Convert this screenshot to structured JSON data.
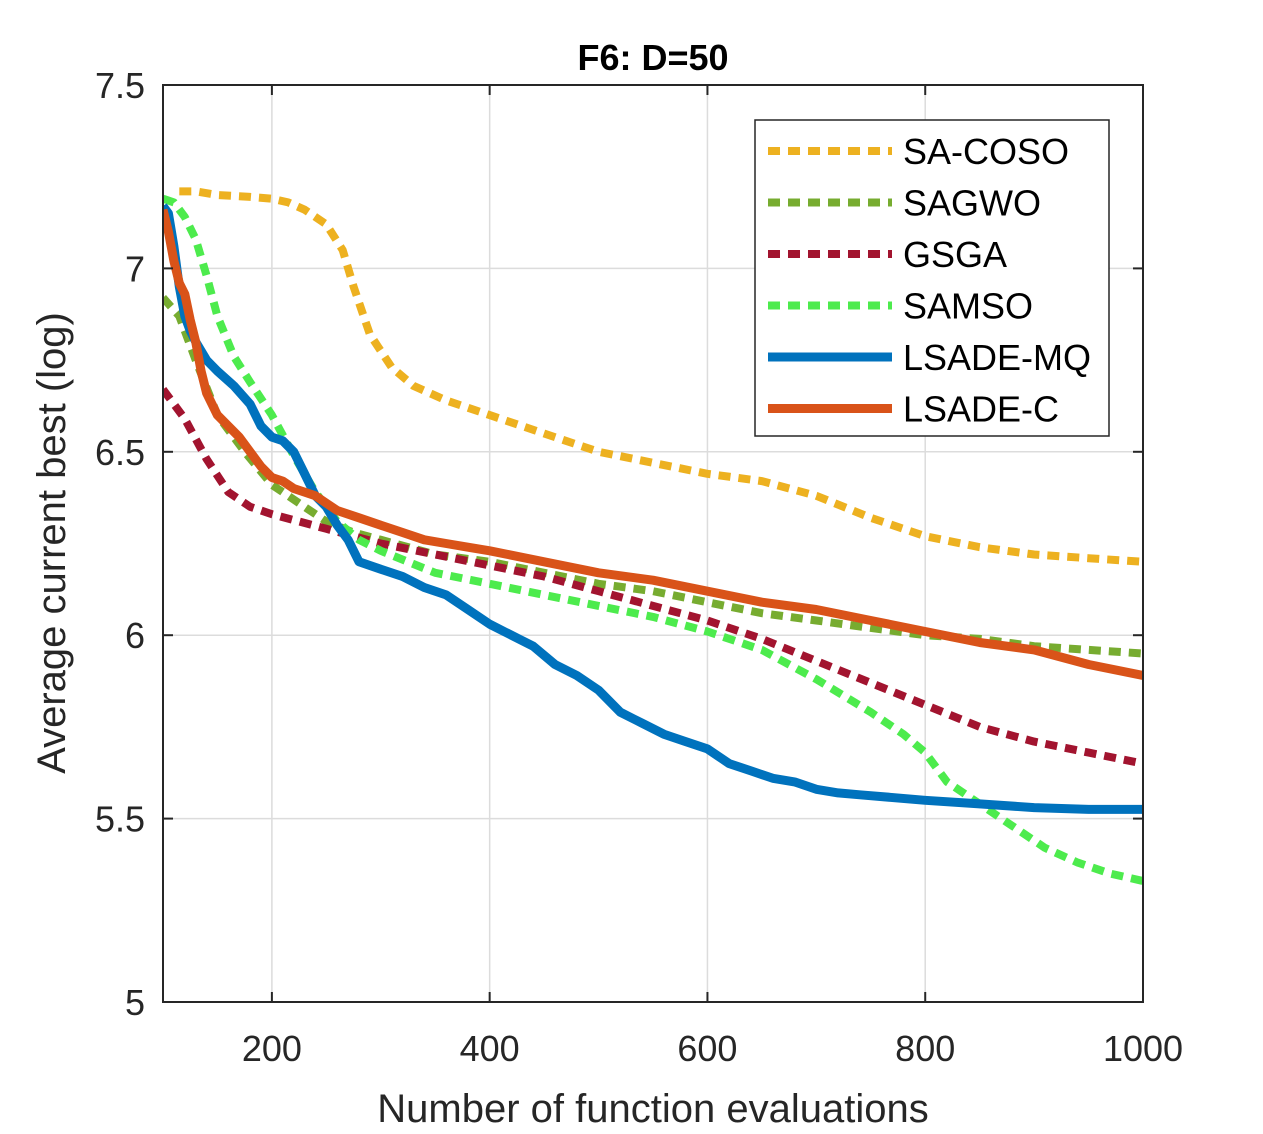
{
  "chart_data": {
    "type": "line",
    "title": "F6: D=50",
    "xlabel": "Number of function evaluations",
    "ylabel": "Average current best (log)",
    "xlim": [
      100,
      1000
    ],
    "ylim": [
      5,
      7.5
    ],
    "xticks": [
      200,
      400,
      600,
      800,
      1000
    ],
    "yticks": [
      5,
      5.5,
      6,
      6.5,
      7,
      7.5
    ],
    "xtick_labels": [
      "200",
      "400",
      "600",
      "800",
      "1000"
    ],
    "ytick_labels": [
      "5",
      "5.5",
      "6",
      "6.5",
      "7",
      "7.5"
    ],
    "grid": true,
    "legend_position": "top-right",
    "series": [
      {
        "name": "SA-COSO",
        "color": "#EDB120",
        "style": "dotted",
        "x": [
          115,
          130,
          150,
          180,
          200,
          215,
          230,
          250,
          265,
          275,
          290,
          310,
          330,
          360,
          400,
          450,
          500,
          550,
          600,
          650,
          700,
          750,
          800,
          850,
          900,
          950,
          1000
        ],
        "y": [
          7.21,
          7.21,
          7.2,
          7.195,
          7.19,
          7.18,
          7.16,
          7.12,
          7.05,
          6.95,
          6.82,
          6.73,
          6.68,
          6.64,
          6.6,
          6.55,
          6.5,
          6.47,
          6.44,
          6.42,
          6.38,
          6.32,
          6.27,
          6.24,
          6.22,
          6.21,
          6.2
        ]
      },
      {
        "name": "SAGWO",
        "color": "#77AC30",
        "style": "dotted",
        "x": [
          100,
          115,
          130,
          150,
          175,
          200,
          225,
          250,
          275,
          300,
          350,
          400,
          450,
          500,
          550,
          600,
          650,
          700,
          750,
          800,
          850,
          900,
          950,
          1000
        ],
        "y": [
          6.92,
          6.87,
          6.75,
          6.6,
          6.5,
          6.41,
          6.36,
          6.31,
          6.28,
          6.26,
          6.22,
          6.2,
          6.17,
          6.14,
          6.12,
          6.09,
          6.06,
          6.04,
          6.02,
          6.0,
          5.99,
          5.97,
          5.96,
          5.95
        ]
      },
      {
        "name": "GSGA",
        "color": "#A2142F",
        "style": "dotted",
        "x": [
          100,
          120,
          140,
          160,
          180,
          200,
          250,
          300,
          350,
          400,
          450,
          500,
          550,
          600,
          650,
          700,
          750,
          800,
          850,
          900,
          950,
          1000
        ],
        "y": [
          6.67,
          6.59,
          6.48,
          6.39,
          6.35,
          6.33,
          6.29,
          6.25,
          6.22,
          6.19,
          6.16,
          6.12,
          6.08,
          6.04,
          5.99,
          5.93,
          5.87,
          5.81,
          5.75,
          5.71,
          5.68,
          5.65
        ]
      },
      {
        "name": "SAMSO",
        "color": "#4DEB4D",
        "style": "dotted",
        "x": [
          100,
          110,
          120,
          130,
          140,
          150,
          165,
          180,
          200,
          220,
          240,
          260,
          280,
          300,
          350,
          400,
          450,
          500,
          550,
          600,
          650,
          700,
          750,
          780,
          800,
          820,
          850,
          880,
          910,
          940,
          970,
          1000
        ],
        "y": [
          7.19,
          7.18,
          7.14,
          7.08,
          6.98,
          6.87,
          6.76,
          6.69,
          6.6,
          6.49,
          6.39,
          6.31,
          6.26,
          6.23,
          6.17,
          6.14,
          6.11,
          6.08,
          6.05,
          6.01,
          5.96,
          5.88,
          5.79,
          5.73,
          5.68,
          5.6,
          5.54,
          5.48,
          5.42,
          5.38,
          5.35,
          5.33
        ]
      },
      {
        "name": "LSADE-MQ",
        "color": "#0072BD",
        "style": "solid",
        "x": [
          100,
          105,
          110,
          115,
          120,
          125,
          130,
          140,
          150,
          165,
          180,
          190,
          200,
          210,
          220,
          230,
          240,
          250,
          260,
          270,
          280,
          290,
          300,
          320,
          340,
          360,
          380,
          400,
          420,
          440,
          460,
          480,
          500,
          520,
          540,
          560,
          580,
          600,
          610,
          620,
          640,
          660,
          680,
          700,
          720,
          740,
          760,
          800,
          850,
          900,
          950,
          1000
        ],
        "y": [
          7.17,
          7.15,
          7.06,
          6.95,
          6.87,
          6.83,
          6.8,
          6.75,
          6.72,
          6.68,
          6.63,
          6.57,
          6.54,
          6.53,
          6.5,
          6.44,
          6.38,
          6.35,
          6.3,
          6.26,
          6.2,
          6.19,
          6.18,
          6.16,
          6.13,
          6.11,
          6.07,
          6.03,
          6.0,
          5.97,
          5.92,
          5.89,
          5.85,
          5.79,
          5.76,
          5.73,
          5.71,
          5.69,
          5.67,
          5.65,
          5.63,
          5.61,
          5.6,
          5.58,
          5.57,
          5.565,
          5.56,
          5.55,
          5.54,
          5.53,
          5.525,
          5.525
        ]
      },
      {
        "name": "LSADE-C",
        "color": "#D95319",
        "style": "solid",
        "x": [
          100,
          105,
          110,
          115,
          120,
          125,
          130,
          135,
          140,
          150,
          160,
          170,
          180,
          190,
          200,
          210,
          220,
          230,
          240,
          250,
          260,
          280,
          300,
          320,
          340,
          360,
          380,
          400,
          450,
          500,
          550,
          600,
          650,
          700,
          750,
          800,
          850,
          900,
          950,
          1000
        ],
        "y": [
          7.16,
          7.1,
          7.02,
          6.96,
          6.93,
          6.86,
          6.8,
          6.72,
          6.66,
          6.6,
          6.57,
          6.54,
          6.5,
          6.46,
          6.43,
          6.42,
          6.4,
          6.39,
          6.38,
          6.36,
          6.34,
          6.32,
          6.3,
          6.28,
          6.26,
          6.25,
          6.24,
          6.23,
          6.2,
          6.17,
          6.15,
          6.12,
          6.09,
          6.07,
          6.04,
          6.01,
          5.98,
          5.96,
          5.92,
          5.89
        ]
      }
    ]
  }
}
